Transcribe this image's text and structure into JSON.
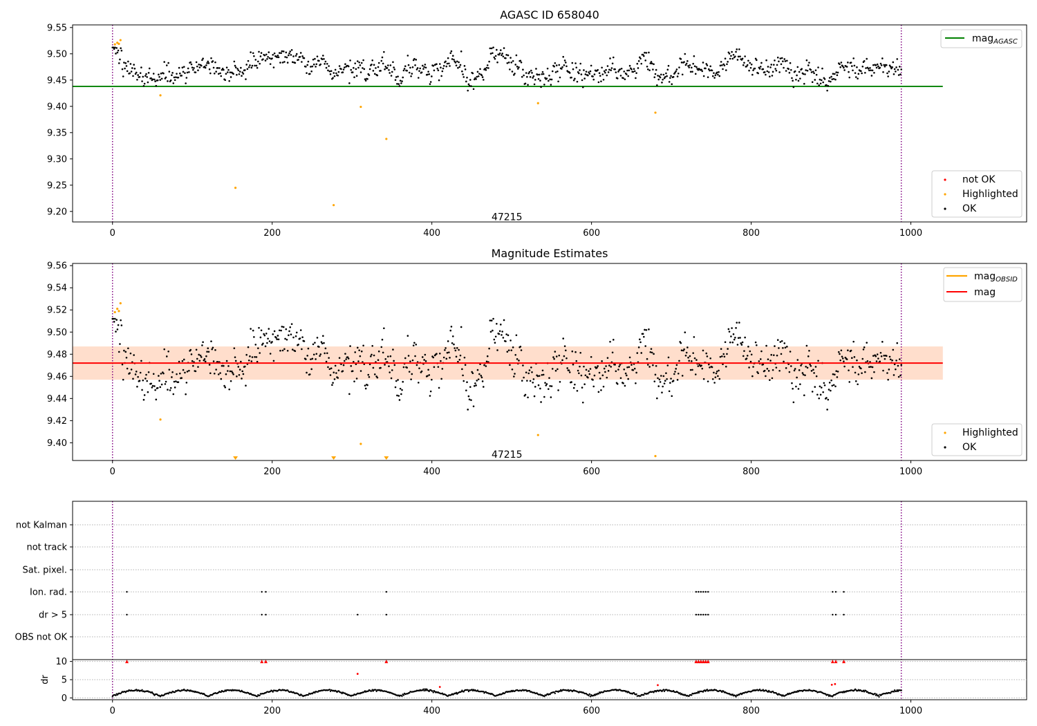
{
  "chart_data": [
    {
      "type": "scatter",
      "title": "AGASC ID 658040",
      "xlim": [
        -50,
        1145
      ],
      "ylim": [
        9.18,
        9.555
      ],
      "xticks": [
        0,
        200,
        400,
        600,
        800,
        1000
      ],
      "yticks": [
        9.2,
        9.25,
        9.3,
        9.35,
        9.4,
        9.45,
        9.5,
        9.55
      ],
      "ytick_labels": [
        "9.20",
        "9.25",
        "9.30",
        "9.35",
        "9.40",
        "9.45",
        "9.50",
        "9.55"
      ],
      "vlines": [
        0,
        988
      ],
      "annotation": {
        "text": "47215",
        "x": 494,
        "y": 9.19
      },
      "hline": {
        "label": "mag_AGASC",
        "label_main": "mag",
        "label_sub": "AGASC",
        "y": 9.438,
        "x_range": [
          -50,
          1040
        ],
        "color": "#008000"
      },
      "line_legend_placement": "upper right",
      "legend_placement": "lower right",
      "legend": [
        {
          "label": "not OK",
          "color": "#ff0000"
        },
        {
          "label": "Highlighted",
          "color": "#ffa500"
        },
        {
          "label": "OK",
          "color": "#000000"
        }
      ],
      "series": [
        {
          "name": "OK",
          "color": "#000000",
          "n": 960,
          "x_range": [
            0,
            988
          ],
          "median": 9.473,
          "spread": 0.018
        },
        {
          "name": "Highlighted",
          "color": "#ffa500",
          "points": [
            [
              3,
              9.518
            ],
            [
              6,
              9.521
            ],
            [
              8,
              9.519
            ],
            [
              10,
              9.526
            ],
            [
              60,
              9.421
            ],
            [
              154,
              9.245
            ],
            [
              277,
              9.212
            ],
            [
              311,
              9.399
            ],
            [
              343,
              9.338
            ],
            [
              533,
              9.406
            ],
            [
              680,
              9.388
            ]
          ]
        }
      ]
    },
    {
      "type": "scatter",
      "title": "Magnitude Estimates",
      "xlim": [
        -50,
        1145
      ],
      "ylim": [
        9.384,
        9.562
      ],
      "xticks": [
        0,
        200,
        400,
        600,
        800,
        1000
      ],
      "yticks": [
        9.4,
        9.42,
        9.44,
        9.46,
        9.48,
        9.5,
        9.52,
        9.54,
        9.56
      ],
      "ytick_labels": [
        "9.40",
        "9.42",
        "9.44",
        "9.46",
        "9.48",
        "9.50",
        "9.52",
        "9.54",
        "9.56"
      ],
      "vlines": [
        0,
        988
      ],
      "annotation": {
        "text": "47215",
        "x": 494,
        "y": 9.389
      },
      "mag_line": {
        "label": "mag",
        "y": 9.472,
        "band": [
          9.457,
          9.487
        ],
        "x_range": [
          -50,
          1040
        ],
        "color": "#ff0000",
        "band_color": "#ffc0cb"
      },
      "mag_obsid": {
        "label": "mag_OBSID",
        "label_main": "mag",
        "label_sub": "OBSID",
        "y": 9.472,
        "band": [
          9.457,
          9.487
        ],
        "x_range": [
          -50,
          1040
        ],
        "color": "#ffa500",
        "band_color": "#ffdab9"
      },
      "line_legend_placement": "upper right",
      "legend_placement": "lower right",
      "legend": [
        {
          "label": "Highlighted",
          "color": "#ffa500"
        },
        {
          "label": "OK",
          "color": "#000000"
        }
      ],
      "series": [
        {
          "name": "OK",
          "color": "#000000",
          "n": 960,
          "x_range": [
            0,
            988
          ],
          "median": 9.473,
          "spread": 0.018
        },
        {
          "name": "Highlighted",
          "color": "#ffa500",
          "points": [
            [
              3,
              9.518
            ],
            [
              6,
              9.521
            ],
            [
              8,
              9.519
            ],
            [
              10,
              9.526
            ],
            [
              60,
              9.421
            ],
            [
              311,
              9.399
            ],
            [
              533,
              9.407
            ],
            [
              680,
              9.388
            ]
          ]
        },
        {
          "name": "Highlighted (below axis)",
          "color": "#ffa500",
          "marker": "triangle-down",
          "points": [
            [
              154,
              9.385
            ],
            [
              277,
              9.385
            ],
            [
              343,
              9.385
            ]
          ]
        }
      ]
    },
    {
      "type": "scatter",
      "title": "",
      "xlim": [
        -50,
        1145
      ],
      "xticks": [
        0,
        200,
        400,
        600,
        800,
        1000
      ],
      "vlines": [
        0,
        988
      ],
      "flags": {
        "rows": [
          "not Kalman",
          "not track",
          "Sat. pixel.",
          "Ion. rad.",
          "dr > 5",
          "OBS not OK"
        ],
        "points": {
          "not Kalman": [],
          "not track": [],
          "Sat. pixel.": [],
          "Ion. rad.": [
            18,
            187,
            192,
            343,
            731,
            734,
            737,
            740,
            743,
            746,
            902,
            906,
            916
          ],
          "dr > 5": [
            18,
            187,
            192,
            307,
            343,
            731,
            734,
            737,
            740,
            743,
            746,
            902,
            906,
            916
          ],
          "OBS not OK": []
        }
      },
      "dr": {
        "ylabel": "dr",
        "yticks": [
          0,
          5,
          10
        ],
        "ylim": [
          -0.5,
          10.5
        ],
        "clip": 10,
        "outliers": [
          {
            "x": 18,
            "y": 10,
            "color": "#ff0000",
            "marker": "triangle-up"
          },
          {
            "x": 187,
            "y": 10,
            "color": "#ff0000",
            "marker": "triangle-up"
          },
          {
            "x": 192,
            "y": 10,
            "color": "#ff0000",
            "marker": "triangle-up"
          },
          {
            "x": 343,
            "y": 10,
            "color": "#ff0000",
            "marker": "triangle-up"
          },
          {
            "x": 731,
            "y": 10,
            "color": "#ff0000",
            "marker": "triangle-up"
          },
          {
            "x": 734,
            "y": 10,
            "color": "#ff0000",
            "marker": "triangle-up"
          },
          {
            "x": 737,
            "y": 10,
            "color": "#ff0000",
            "marker": "triangle-up"
          },
          {
            "x": 740,
            "y": 10,
            "color": "#ff0000",
            "marker": "triangle-up"
          },
          {
            "x": 743,
            "y": 10,
            "color": "#ff0000",
            "marker": "triangle-up"
          },
          {
            "x": 746,
            "y": 10,
            "color": "#ff0000",
            "marker": "triangle-up"
          },
          {
            "x": 902,
            "y": 10,
            "color": "#ff0000",
            "marker": "triangle-up"
          },
          {
            "x": 906,
            "y": 10,
            "color": "#ff0000",
            "marker": "triangle-up"
          },
          {
            "x": 916,
            "y": 10,
            "color": "#ff0000",
            "marker": "triangle-up"
          },
          {
            "x": 307,
            "y": 6.6,
            "color": "#ff0000",
            "marker": "dot"
          },
          {
            "x": 410,
            "y": 3.0,
            "color": "#ff0000",
            "marker": "dot"
          },
          {
            "x": 683,
            "y": 3.5,
            "color": "#ff0000",
            "marker": "dot"
          },
          {
            "x": 901,
            "y": 3.6,
            "color": "#ff0000",
            "marker": "dot"
          },
          {
            "x": 905,
            "y": 3.8,
            "color": "#ff0000",
            "marker": "dot"
          }
        ],
        "typical_range": [
          0.3,
          2.8
        ]
      }
    }
  ]
}
